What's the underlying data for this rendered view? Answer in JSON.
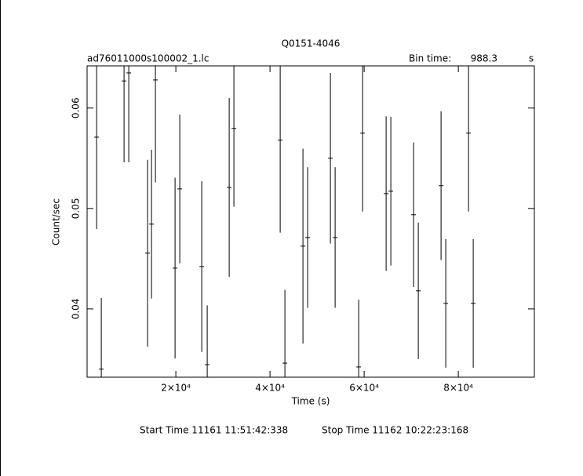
{
  "chart_data": {
    "type": "errorbar",
    "title": "Q0151-4046",
    "file_label": "ad76011000s100002_1.lc",
    "bin_time_label": "Bin time:",
    "bin_time": 988.3,
    "bin_time_unit": "s",
    "x_label": "Time (s)",
    "y_label": "Count/sec",
    "start_time": "Start Time 11161 11:51:42:338",
    "stop_time": "Stop Time 11162 10:22:23:168",
    "color": "#000000",
    "xlim": [
      1150,
      96150
    ],
    "ylim": [
      0.0332,
      0.0642
    ],
    "xticks": [
      {
        "value": 20000,
        "label": "2×10⁴"
      },
      {
        "value": 40000,
        "label": "4×10⁴"
      },
      {
        "value": 60000,
        "label": "6×10⁴"
      },
      {
        "value": 80000,
        "label": "8×10⁴"
      }
    ],
    "yticks": [
      0.04,
      0.05,
      0.06
    ],
    "series": [
      {
        "name": "Q0151-4046",
        "x": [
          3167,
          4167,
          9000,
          10000,
          14000,
          14833,
          15667,
          19833,
          20833,
          25500,
          26667,
          31333,
          32333,
          42167,
          43167,
          47000,
          48000,
          52833,
          53833,
          58833,
          59667,
          64667,
          65667,
          70500,
          71500,
          76333,
          77333,
          82167,
          83167
        ],
        "values": [
          0.0571,
          0.034,
          0.0627,
          0.0635,
          0.04555,
          0.04844,
          0.0628,
          0.04406,
          0.05195,
          0.04422,
          0.03445,
          0.0521,
          0.05797,
          0.0568,
          0.0346,
          0.04625,
          0.04711,
          0.055,
          0.04711,
          0.03422,
          0.0575,
          0.05148,
          0.05172,
          0.04938,
          0.0418,
          0.05227,
          0.04055,
          0.0575,
          0.04055
        ],
        "errors": [
          0.00914,
          0.0071,
          0.0081,
          0.0089,
          0.0093,
          0.0074,
          0.0102,
          0.009,
          0.0074,
          0.0085,
          0.0059,
          0.0089,
          0.0078,
          0.0092,
          0.0073,
          0.0097,
          0.007,
          0.0085,
          0.007,
          0.0067,
          0.0078,
          0.0077,
          0.0074,
          0.0072,
          0.0068,
          0.0074,
          0.0064,
          0.0078,
          0.0064
        ]
      }
    ]
  }
}
